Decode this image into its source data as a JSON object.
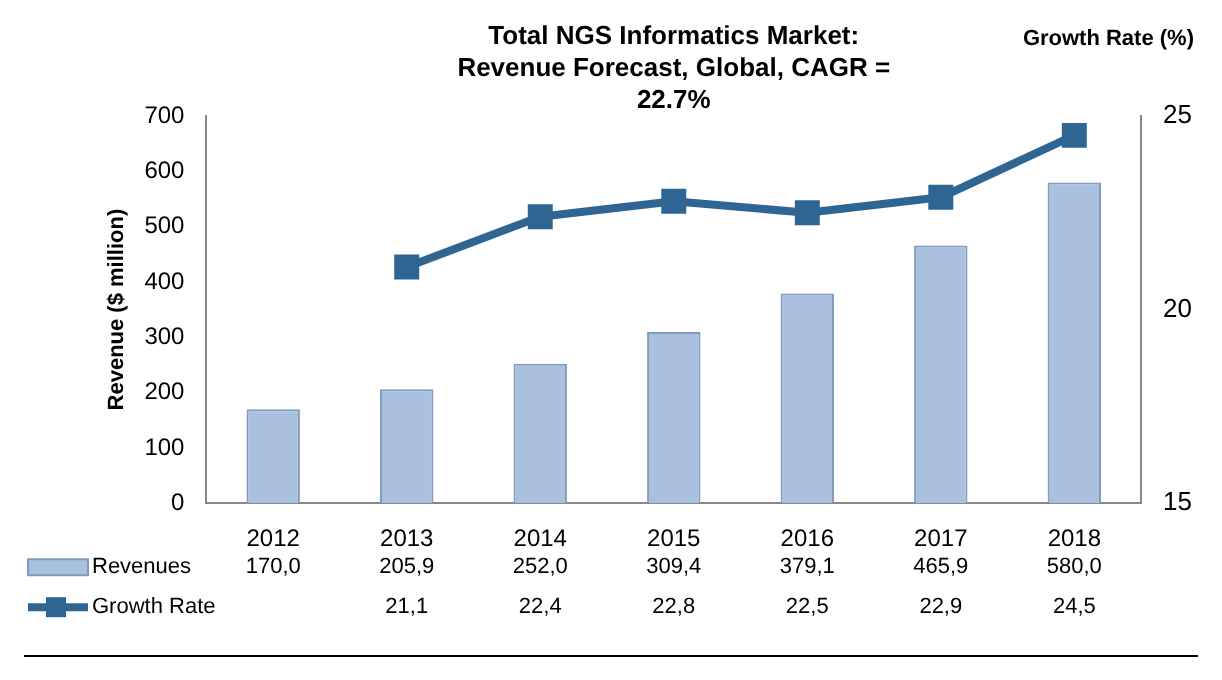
{
  "chart_data": {
    "type": "bar",
    "title": "Total NGS Informatics Market: Revenue Forecast, Global, CAGR = 22.7%",
    "ylabel": "Revenue ($ million)",
    "y2label": "Growth Rate (%)",
    "categories": [
      "2012",
      "2013",
      "2014",
      "2015",
      "2016",
      "2017",
      "2018"
    ],
    "series": [
      {
        "name": "Revenues",
        "color": "#a9c1de",
        "values": [
          170.0,
          205.9,
          252.0,
          309.4,
          379.1,
          465.9,
          580.0
        ],
        "value_labels": [
          "170,0",
          "205,9",
          "252,0",
          "309,4",
          "379,1",
          "465,9",
          "580,0"
        ]
      },
      {
        "name": "Growth Rate",
        "type": "line",
        "axis": "y2",
        "color": "#2f6592",
        "marker": "square",
        "values": [
          null,
          21.1,
          22.4,
          22.8,
          22.5,
          22.9,
          24.5
        ],
        "value_labels": [
          null,
          "21,1",
          "22,4",
          "22,8",
          "22,5",
          "22,9",
          "24,5"
        ]
      }
    ],
    "ylim": [
      0,
      700
    ],
    "yticks": [
      0,
      100,
      200,
      300,
      400,
      500,
      600,
      700
    ],
    "y2lim": [
      15,
      25
    ],
    "y2ticks": [
      15,
      20,
      25
    ],
    "grid": false,
    "legend": "bottom"
  }
}
